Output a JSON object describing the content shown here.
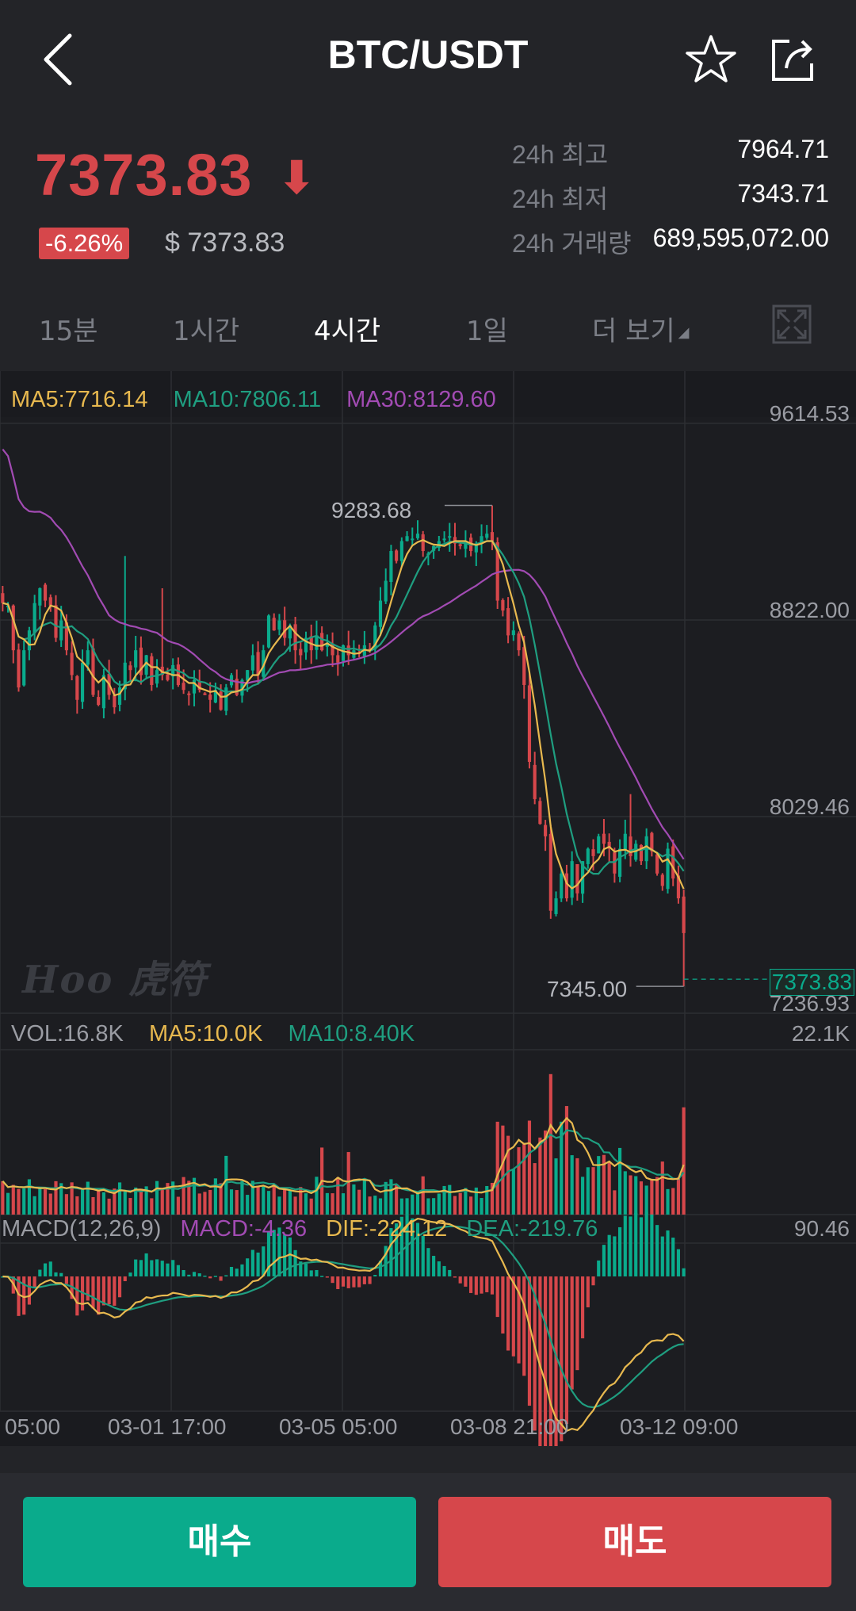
{
  "header": {
    "title": "BTC/USDT",
    "back_icon": "chevron-left-icon",
    "star_icon": "star-outline-icon",
    "share_icon": "share-icon"
  },
  "ticker": {
    "last_price": "7373.83",
    "direction_icon": "arrow-down",
    "change_pct": "-6.26%",
    "usd_price": "$ 7373.83",
    "stats": [
      {
        "label": "24h 최고",
        "value": "7964.71"
      },
      {
        "label": "24h 최저",
        "value": "7343.71"
      },
      {
        "label": "24h 거래량",
        "value": "689,595,072.00"
      }
    ]
  },
  "tabs": [
    {
      "label": "15분",
      "active": false
    },
    {
      "label": "1시간",
      "active": false
    },
    {
      "label": "4시간",
      "active": true
    },
    {
      "label": "1일",
      "active": false
    },
    {
      "label": "더 보기",
      "active": false
    }
  ],
  "colors": {
    "up": "#0aab8c",
    "down": "#d6474b",
    "ma5": "#e8b94f",
    "ma10": "#1f9e80",
    "ma30": "#a24bb3"
  },
  "chart": {
    "ma_legend": {
      "ma5": "MA5:7716.14",
      "ma10": "MA10:7806.11",
      "ma30": "MA30:8129.60"
    },
    "price_axis": [
      "9614.53",
      "8822.00",
      "8029.46",
      "7236.93"
    ],
    "high_marker": "9283.68",
    "low_marker": "7345.00",
    "current_marker": "7373.83",
    "watermark": "Hoo 虎符",
    "vol_legend": {
      "vol": "VOL:16.8K",
      "ma5": "MA5:10.0K",
      "ma10": "MA10:8.40K"
    },
    "vol_axis_max": "22.1K",
    "macd_legend": {
      "params": "MACD(12,26,9)",
      "macd": "MACD:-4.36",
      "dif": "DIF:-224.12",
      "dea": "DEA:-219.76"
    },
    "macd_axis_max": "90.46",
    "time_axis": [
      "05:00",
      "03-01 17:00",
      "03-05 05:00",
      "03-08 21:00",
      "03-12 09:00"
    ]
  },
  "chart_data": {
    "type": "candlestick",
    "interval": "4시간",
    "ylim": [
      7236.93,
      9614.53
    ],
    "price_ticks": [
      9614.53,
      8822.0,
      8029.46,
      7236.93
    ],
    "close": [
      8890,
      8880,
      8700,
      8550,
      8700,
      8780,
      8890,
      8950,
      8900,
      8880,
      8750,
      8820,
      8700,
      8600,
      8500,
      8650,
      8700,
      8520,
      8480,
      8600,
      8520,
      8470,
      8550,
      8650,
      8620,
      8700,
      8600,
      8680,
      8560,
      8620,
      8600,
      8580,
      8640,
      8560,
      8540,
      8520,
      8580,
      8540,
      8520,
      8500,
      8540,
      8460,
      8550,
      8600,
      8520,
      8580,
      8620,
      8680,
      8600,
      8700,
      8840,
      8780,
      8820,
      8750,
      8800,
      8700,
      8680,
      8750,
      8700,
      8760,
      8700,
      8730,
      8680,
      8650,
      8720,
      8680,
      8700,
      8690,
      8720,
      8700,
      8800,
      8900,
      8980,
      9100,
      9060,
      9140,
      9160,
      9150,
      9170,
      9100,
      9090,
      9120,
      9140,
      9150,
      9160,
      9130,
      9120,
      9140,
      9100,
      9130,
      9160,
      9170,
      9140,
      8900,
      8860,
      8760,
      8780,
      8700,
      8560,
      8250,
      8100,
      8000,
      7950,
      7650,
      7700,
      7800,
      7700,
      7850,
      7720,
      7850,
      7900,
      7870,
      7950,
      7920,
      7900,
      7800,
      7900,
      7960,
      7870,
      7920,
      7850,
      7950,
      7890,
      7800,
      7750,
      7900,
      7780,
      7700,
      7560
    ],
    "ma5_last": 7716.14,
    "ma10_last": 7806.11,
    "ma30_last": 8129.6,
    "high": 9283.68,
    "low": 7345.0,
    "last": 7373.83,
    "volume_max": 22100,
    "volume_last": 16800,
    "vol_ma5_last": 10000,
    "vol_ma10_last": 8400,
    "macd": {
      "params": [
        12,
        26,
        9
      ],
      "macd": -4.36,
      "dif": -224.12,
      "dea": -219.76,
      "axis_max": 90.46
    },
    "x_labels": [
      "05:00",
      "03-01 17:00",
      "03-05 05:00",
      "03-08 21:00",
      "03-12 09:00"
    ]
  },
  "footer": {
    "buy_label": "매수",
    "sell_label": "매도"
  }
}
